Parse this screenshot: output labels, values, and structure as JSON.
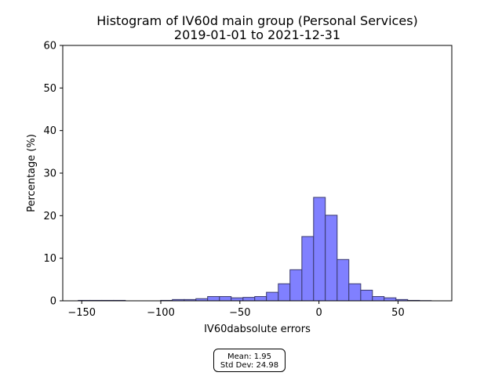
{
  "chart_data": {
    "type": "bar",
    "title": "Histogram of IV60d main group (Personal Services)",
    "subtitle": "2019-01-01 to 2021-12-31",
    "xlabel": "IV60dabsolute errors",
    "ylabel": "Percentage (%)",
    "xlim": [
      -162,
      84
    ],
    "ylim": [
      0,
      60
    ],
    "xticks": [
      -150,
      -100,
      -50,
      0,
      50
    ],
    "xtick_labels": [
      "−150",
      "−100",
      "−50",
      "0",
      "50"
    ],
    "yticks": [
      0,
      10,
      20,
      30,
      40,
      50,
      60
    ],
    "ytick_labels": [
      "0",
      "10",
      "20",
      "30",
      "40",
      "50",
      "60"
    ],
    "grid": false,
    "bar_color": "#8080ff",
    "edge_color": "#3a3a6e",
    "bins": [
      {
        "x0": -152.2,
        "x1": -144.8,
        "value": 0.1
      },
      {
        "x0": -144.8,
        "x1": -137.3,
        "value": 0.1
      },
      {
        "x0": -137.3,
        "x1": -129.9,
        "value": 0.1
      },
      {
        "x0": -129.9,
        "x1": -122.4,
        "value": 0.1
      },
      {
        "x0": -122.4,
        "x1": -115.0,
        "value": 0.0
      },
      {
        "x0": -115.0,
        "x1": -107.6,
        "value": 0.0
      },
      {
        "x0": -107.6,
        "x1": -100.1,
        "value": 0.0
      },
      {
        "x0": -100.1,
        "x1": -92.7,
        "value": 0.1
      },
      {
        "x0": -92.7,
        "x1": -85.2,
        "value": 0.3
      },
      {
        "x0": -85.2,
        "x1": -77.8,
        "value": 0.3
      },
      {
        "x0": -77.8,
        "x1": -70.4,
        "value": 0.5
      },
      {
        "x0": -70.4,
        "x1": -62.9,
        "value": 1.0
      },
      {
        "x0": -62.9,
        "x1": -55.5,
        "value": 1.0
      },
      {
        "x0": -55.5,
        "x1": -48.0,
        "value": 0.7
      },
      {
        "x0": -48.0,
        "x1": -40.6,
        "value": 0.8
      },
      {
        "x0": -40.6,
        "x1": -33.2,
        "value": 1.0
      },
      {
        "x0": -33.2,
        "x1": -25.7,
        "value": 2.0
      },
      {
        "x0": -25.7,
        "x1": -18.3,
        "value": 4.0
      },
      {
        "x0": -18.3,
        "x1": -10.8,
        "value": 7.3
      },
      {
        "x0": -10.8,
        "x1": -3.4,
        "value": 15.1
      },
      {
        "x0": -3.4,
        "x1": 4.0,
        "value": 24.3
      },
      {
        "x0": 4.0,
        "x1": 11.5,
        "value": 20.1
      },
      {
        "x0": 11.5,
        "x1": 18.9,
        "value": 9.7
      },
      {
        "x0": 18.9,
        "x1": 26.4,
        "value": 4.0
      },
      {
        "x0": 26.4,
        "x1": 33.8,
        "value": 2.5
      },
      {
        "x0": 33.8,
        "x1": 41.2,
        "value": 1.0
      },
      {
        "x0": 41.2,
        "x1": 48.7,
        "value": 0.7
      },
      {
        "x0": 48.7,
        "x1": 56.1,
        "value": 0.3
      },
      {
        "x0": 56.1,
        "x1": 63.6,
        "value": 0.1
      },
      {
        "x0": 63.6,
        "x1": 71.0,
        "value": 0.05
      }
    ]
  },
  "stats": {
    "mean": "Mean: 1.95",
    "std_dev": "Std Dev: 24.98"
  }
}
